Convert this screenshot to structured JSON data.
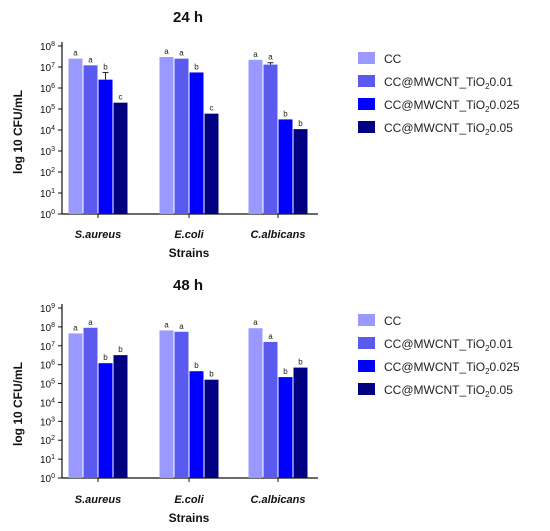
{
  "colors": {
    "CC": "#9999ff",
    "CC01": "#5a5aee",
    "CC025": "#0000ff",
    "CC05": "#000080"
  },
  "legend": {
    "items": [
      {
        "prefix": "CC",
        "sub": "",
        "suffix": "",
        "color": "#9999ff"
      },
      {
        "prefix": "CC@MWCNT_TiO",
        "sub": "2",
        "suffix": "0.01",
        "color": "#5a5aee"
      },
      {
        "prefix": "CC@MWCNT_TiO",
        "sub": "2",
        "suffix": "0.025",
        "color": "#0000ff"
      },
      {
        "prefix": "CC@MWCNT_TiO",
        "sub": "2",
        "suffix": "0.05",
        "color": "#000080"
      }
    ]
  },
  "chart_data": [
    {
      "type": "bar",
      "title": "24 h",
      "xlabel": "Strains",
      "ylabel": "log 10 CFU/mL",
      "yscale": "log",
      "ylim": [
        1,
        100000000
      ],
      "yticks": {
        "base": "10",
        "exponents": [
          "0",
          "1",
          "2",
          "3",
          "4",
          "5",
          "6",
          "7",
          "8"
        ]
      },
      "categories": [
        "S.aureus",
        "E.coli",
        "C.albicans"
      ],
      "series": [
        {
          "name": "CC",
          "values": [
            25000000,
            30000000,
            22000000
          ],
          "errors": [
            0,
            0,
            0
          ],
          "labels": [
            "a",
            "a",
            "a"
          ]
        },
        {
          "name": "CC@MWCNT_TiO2 0.01",
          "values": [
            12000000,
            25000000,
            13000000
          ],
          "errors": [
            0,
            0,
            3000000
          ],
          "labels": [
            "a",
            "a",
            "a"
          ]
        },
        {
          "name": "CC@MWCNT_TiO2 0.025",
          "values": [
            2500000,
            5500000,
            32000
          ],
          "errors": [
            3000000,
            0,
            0
          ],
          "labels": [
            "b",
            "b",
            "b"
          ]
        },
        {
          "name": "CC@MWCNT_TiO2 0.05",
          "values": [
            200000,
            60000,
            11000
          ],
          "errors": [
            0,
            0,
            0
          ],
          "labels": [
            "c",
            "c",
            "b"
          ]
        }
      ]
    },
    {
      "type": "bar",
      "title": "48 h",
      "xlabel": "Strains",
      "ylabel": "log 10 CFU/mL",
      "yscale": "log",
      "ylim": [
        1,
        1000000000
      ],
      "yticks": {
        "base": "10",
        "exponents": [
          "0",
          "1",
          "2",
          "3",
          "4",
          "5",
          "6",
          "7",
          "8",
          "9"
        ]
      },
      "categories": [
        "S.aureus",
        "E.coli",
        "C.albicans"
      ],
      "series": [
        {
          "name": "CC",
          "values": [
            45000000,
            65000000,
            85000000
          ],
          "errors": [
            0,
            0,
            0
          ],
          "labels": [
            "a",
            "a",
            "a"
          ]
        },
        {
          "name": "CC@MWCNT_TiO2 0.01",
          "values": [
            90000000,
            55000000,
            16000000
          ],
          "errors": [
            0,
            0,
            0
          ],
          "labels": [
            "a",
            "a",
            "a"
          ]
        },
        {
          "name": "CC@MWCNT_TiO2 0.025",
          "values": [
            1200000,
            450000,
            220000
          ],
          "errors": [
            0,
            0,
            0
          ],
          "labels": [
            "b",
            "b",
            "b"
          ]
        },
        {
          "name": "CC@MWCNT_TiO2 0.05",
          "values": [
            3200000,
            160000,
            700000
          ],
          "errors": [
            0,
            0,
            0
          ],
          "labels": [
            "b",
            "b",
            "b"
          ]
        }
      ]
    }
  ]
}
